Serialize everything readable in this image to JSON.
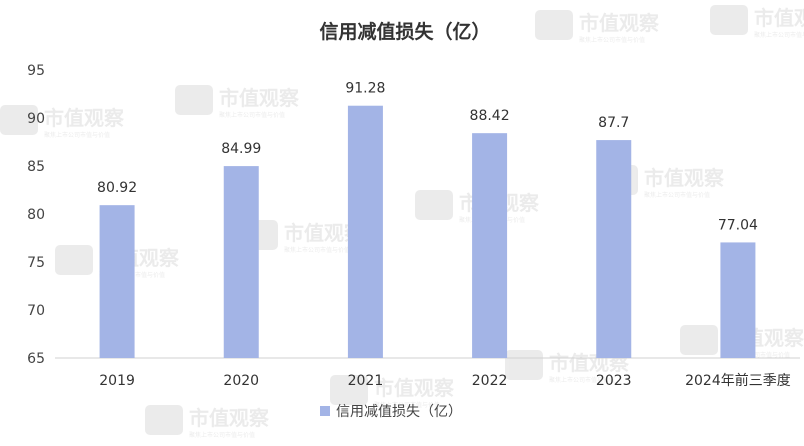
{
  "chart_data": {
    "type": "bar",
    "title": "信用减值损失（亿）",
    "categories": [
      "2019",
      "2020",
      "2021",
      "2022",
      "2023",
      "2024年前三季度"
    ],
    "series": [
      {
        "name": "信用减值损失（亿）",
        "values": [
          80.92,
          84.99,
          91.28,
          88.42,
          87.7,
          77.04
        ]
      }
    ],
    "value_labels": [
      "80.92",
      "84.99",
      "91.28",
      "88.42",
      "87.7",
      "77.04"
    ],
    "ylim": [
      65,
      95
    ],
    "yticks": [
      "65",
      "70",
      "75",
      "80",
      "85",
      "90",
      "95"
    ],
    "grid": false,
    "legend_position": "bottom",
    "bar_color": "#a3b4e6"
  },
  "watermark": {
    "brand": "市值观察",
    "tagline": "聚焦上市公司市值与价值"
  }
}
